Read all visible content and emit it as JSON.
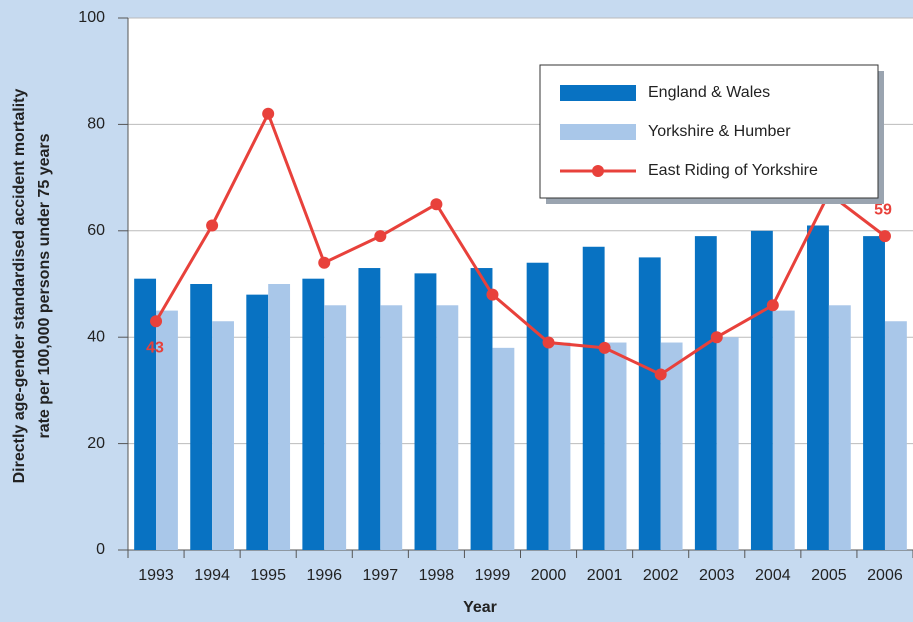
{
  "chart_data": {
    "type": "bar_line",
    "xlabel": "Year",
    "ylabel": [
      "Directly age-gender standardised accident mortality",
      "rate per 100,000 persons under 75 years"
    ],
    "categories": [
      "1993",
      "1994",
      "1995",
      "1996",
      "1997",
      "1998",
      "1999",
      "2000",
      "2001",
      "2002",
      "2003",
      "2004",
      "2005",
      "2006"
    ],
    "series": [
      {
        "name": "England & Wales",
        "type": "bar",
        "color": "#0872c2",
        "values": [
          51,
          50,
          48,
          51,
          53,
          52,
          53,
          54,
          57,
          55,
          59,
          60,
          61,
          59
        ]
      },
      {
        "name": "Yorkshire & Humber",
        "type": "bar",
        "color": "#a9c7e9",
        "values": [
          45,
          43,
          50,
          46,
          46,
          46,
          38,
          39,
          39,
          39,
          40,
          45,
          46,
          43
        ]
      },
      {
        "name": "East Riding of Yorkshire",
        "type": "line",
        "color": "#e8413b",
        "values": [
          43,
          61,
          82,
          54,
          59,
          65,
          48,
          39,
          38,
          33,
          40,
          46,
          67,
          59
        ],
        "value_labels": [
          "43",
          null,
          null,
          null,
          null,
          null,
          null,
          null,
          null,
          null,
          null,
          null,
          null,
          "59"
        ]
      }
    ],
    "ylim": [
      0,
      100
    ],
    "yticks": [
      0,
      20,
      40,
      60,
      80,
      100
    ],
    "grid": true
  }
}
